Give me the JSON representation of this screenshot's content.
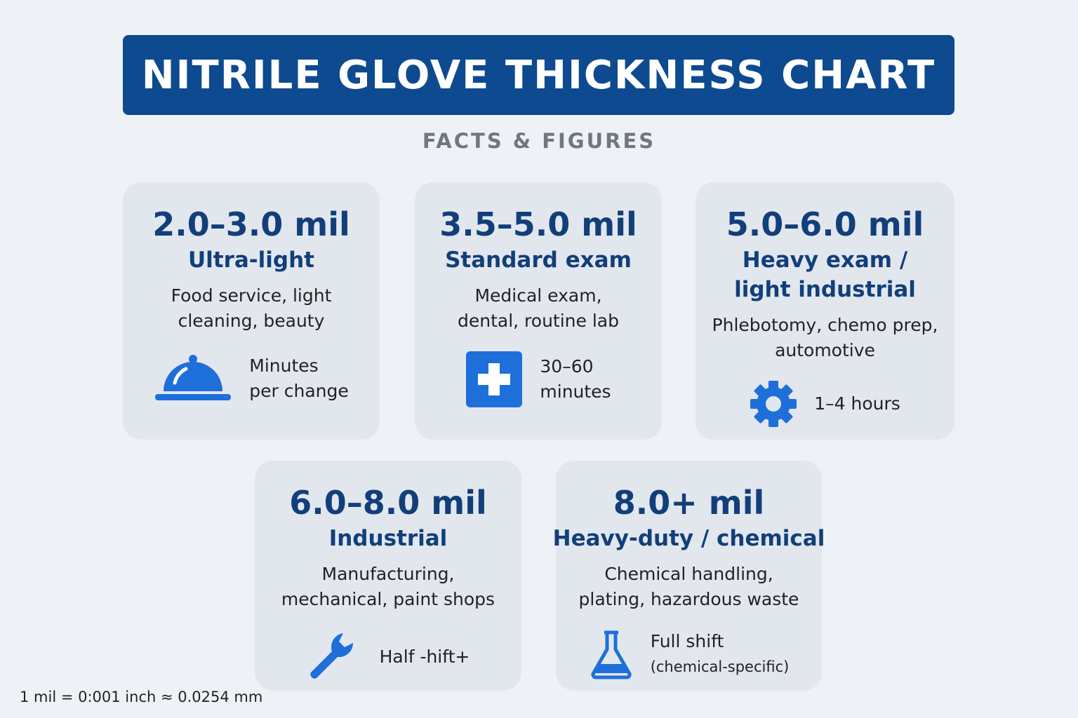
{
  "header": {
    "title": "NITRILE GLOVE THICKNESS CHART",
    "subtitle": "FACTS & FIGURES"
  },
  "cards": [
    {
      "thickness": "2.0–3.0 mil",
      "grade": [
        "Ultra-light"
      ],
      "uses": [
        "Food service, light",
        "cleaning, beauty"
      ],
      "duration": [
        "Minutes",
        "per change"
      ]
    },
    {
      "thickness": "3.5–5.0 mil",
      "grade": [
        "Standard exam"
      ],
      "uses": [
        "Medical exam,",
        "dental, routine lab"
      ],
      "duration": [
        "30–60",
        "minutes"
      ]
    },
    {
      "thickness": "5.0–6.0 mil",
      "grade": [
        "Heavy exam /",
        "light industrial"
      ],
      "uses": [
        "Phlebotomy, chemo prep,",
        "automotive"
      ],
      "duration": [
        "1–4 hours"
      ]
    },
    {
      "thickness": "6.0–8.0 mil",
      "grade": [
        "Industrial"
      ],
      "uses": [
        "Manufacturing,",
        "mechanical, paint shops"
      ],
      "duration": [
        "Half -hift+"
      ]
    },
    {
      "thickness": "8.0+ mil",
      "grade": [
        "Heavy-duty / chemical"
      ],
      "uses": [
        "Chemical handling,",
        "plating, hazardous waste"
      ],
      "duration": [
        "Full shift",
        "(chemical-specific)"
      ]
    }
  ],
  "footnote": "1 mil = 0:001 inch ≈ 0.0254 mm"
}
